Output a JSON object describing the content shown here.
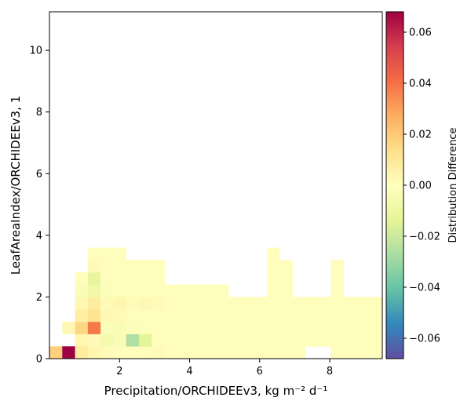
{
  "chart_data": {
    "type": "heatmap",
    "xlabel": "Precipitation/ORCHIDEEv3,  kg m⁻² d⁻¹",
    "ylabel": "LeafAreaIndex/ORCHIDEEv3,  1",
    "xlim": [
      0.0,
      9.5
    ],
    "ylim": [
      0.0,
      11.25
    ],
    "xticks": [
      "2",
      "4",
      "6",
      "8"
    ],
    "yticks": [
      "0",
      "2",
      "4",
      "6",
      "8",
      "10"
    ],
    "colorbar": {
      "label": "Distribution Difference",
      "range": [
        -0.068,
        0.068
      ],
      "ticks": [
        "−0.06",
        "−0.04",
        "−0.02",
        "0.00",
        "0.02",
        "0.04",
        "0.06"
      ],
      "colormap": "Spectral_r"
    },
    "grid": false,
    "bins": {
      "x0": 0.0,
      "dx": 0.365,
      "y0": 0.0,
      "dy": 0.4,
      "cells": [
        [
          0,
          0,
          0.018
        ],
        [
          1,
          0,
          0.068
        ],
        [
          2,
          0,
          0.008
        ],
        [
          3,
          0,
          0.004
        ],
        [
          4,
          0,
          0.002
        ],
        [
          5,
          0,
          0.001
        ],
        [
          6,
          0,
          0.001
        ],
        [
          7,
          0,
          0.001
        ],
        [
          8,
          0,
          0.002
        ],
        [
          9,
          0,
          0.001
        ],
        [
          10,
          0,
          0.001
        ],
        [
          11,
          0,
          0.001
        ],
        [
          12,
          0,
          0.001
        ],
        [
          13,
          0,
          0.001
        ],
        [
          14,
          0,
          0.001
        ],
        [
          15,
          0,
          0.001
        ],
        [
          16,
          0,
          0.001
        ],
        [
          17,
          0,
          0.001
        ],
        [
          18,
          0,
          0.001
        ],
        [
          19,
          0,
          0.001
        ],
        [
          22,
          0,
          0.001
        ],
        [
          23,
          0,
          0.001
        ],
        [
          24,
          0,
          0.001
        ],
        [
          25,
          0,
          0.001
        ],
        [
          2,
          1,
          0.004
        ],
        [
          3,
          1,
          0.002
        ],
        [
          4,
          1,
          -0.006
        ],
        [
          5,
          1,
          -0.004
        ],
        [
          6,
          1,
          -0.026
        ],
        [
          7,
          1,
          -0.014
        ],
        [
          8,
          1,
          0.001
        ],
        [
          9,
          1,
          0.001
        ],
        [
          10,
          1,
          0.001
        ],
        [
          11,
          1,
          0.001
        ],
        [
          12,
          1,
          0.001
        ],
        [
          13,
          1,
          0.001
        ],
        [
          14,
          1,
          0.001
        ],
        [
          15,
          1,
          0.001
        ],
        [
          16,
          1,
          0.001
        ],
        [
          17,
          1,
          0.001
        ],
        [
          18,
          1,
          0.001
        ],
        [
          19,
          1,
          0.001
        ],
        [
          20,
          1,
          0.001
        ],
        [
          21,
          1,
          0.001
        ],
        [
          22,
          1,
          0.001
        ],
        [
          23,
          1,
          0.001
        ],
        [
          24,
          1,
          0.001
        ],
        [
          25,
          1,
          0.001
        ],
        [
          26,
          1,
          0.001
        ],
        [
          27,
          1,
          0.001
        ],
        [
          28,
          1,
          0.001
        ],
        [
          29,
          1,
          0.001
        ],
        [
          30,
          1,
          0.001
        ],
        [
          31,
          1,
          0.001
        ],
        [
          32,
          1,
          0.001
        ],
        [
          33,
          1,
          0.001
        ],
        [
          1,
          2,
          0.003
        ],
        [
          2,
          2,
          0.016
        ],
        [
          3,
          2,
          0.038
        ],
        [
          4,
          2,
          -0.002
        ],
        [
          5,
          2,
          -0.004
        ],
        [
          6,
          2,
          -0.002
        ],
        [
          7,
          2,
          -0.001
        ],
        [
          8,
          2,
          0.001
        ],
        [
          9,
          2,
          0.001
        ],
        [
          10,
          2,
          0.001
        ],
        [
          11,
          2,
          0.001
        ],
        [
          12,
          2,
          0.001
        ],
        [
          13,
          2,
          0.001
        ],
        [
          14,
          2,
          0.001
        ],
        [
          15,
          2,
          0.001
        ],
        [
          16,
          2,
          0.001
        ],
        [
          17,
          2,
          0.001
        ],
        [
          18,
          2,
          0.001
        ],
        [
          19,
          2,
          0.001
        ],
        [
          20,
          2,
          0.001
        ],
        [
          21,
          2,
          0.001
        ],
        [
          22,
          2,
          0.001
        ],
        [
          23,
          2,
          0.001
        ],
        [
          24,
          2,
          0.001
        ],
        [
          25,
          2,
          0.001
        ],
        [
          26,
          2,
          0.001
        ],
        [
          27,
          2,
          0.001
        ],
        [
          28,
          2,
          0.001
        ],
        [
          29,
          2,
          0.001
        ],
        [
          30,
          2,
          0.001
        ],
        [
          31,
          2,
          0.001
        ],
        [
          32,
          2,
          0.001
        ],
        [
          33,
          2,
          0.001
        ],
        [
          2,
          3,
          0.007
        ],
        [
          3,
          3,
          0.012
        ],
        [
          4,
          3,
          0.003
        ],
        [
          5,
          3,
          0.002
        ],
        [
          6,
          3,
          0.001
        ],
        [
          7,
          3,
          0.001
        ],
        [
          8,
          3,
          0.001
        ],
        [
          9,
          3,
          0.001
        ],
        [
          10,
          3,
          0.001
        ],
        [
          11,
          3,
          0.001
        ],
        [
          12,
          3,
          0.001
        ],
        [
          13,
          3,
          0.001
        ],
        [
          14,
          3,
          0.001
        ],
        [
          15,
          3,
          0.001
        ],
        [
          16,
          3,
          0.001
        ],
        [
          17,
          3,
          0.001
        ],
        [
          18,
          3,
          0.001
        ],
        [
          19,
          3,
          0.001
        ],
        [
          20,
          3,
          0.001
        ],
        [
          21,
          3,
          0.001
        ],
        [
          22,
          3,
          0.001
        ],
        [
          23,
          3,
          0.001
        ],
        [
          24,
          3,
          0.001
        ],
        [
          25,
          3,
          0.001
        ],
        [
          26,
          3,
          0.001
        ],
        [
          27,
          3,
          0.001
        ],
        [
          28,
          3,
          0.001
        ],
        [
          29,
          3,
          0.001
        ],
        [
          30,
          3,
          0.001
        ],
        [
          2,
          4,
          0.003
        ],
        [
          3,
          4,
          0.008
        ],
        [
          4,
          4,
          0.002
        ],
        [
          5,
          4,
          0.004
        ],
        [
          6,
          4,
          0.002
        ],
        [
          7,
          4,
          0.003
        ],
        [
          8,
          4,
          0.002
        ],
        [
          9,
          4,
          0.001
        ],
        [
          10,
          4,
          0.001
        ],
        [
          11,
          4,
          0.001
        ],
        [
          12,
          4,
          0.001
        ],
        [
          13,
          4,
          0.001
        ],
        [
          14,
          4,
          0.001
        ],
        [
          15,
          4,
          0.001
        ],
        [
          16,
          4,
          0.001
        ],
        [
          17,
          4,
          0.001
        ],
        [
          18,
          4,
          0.001
        ],
        [
          19,
          4,
          0.001
        ],
        [
          20,
          4,
          0.001
        ],
        [
          21,
          4,
          0.001
        ],
        [
          22,
          4,
          0.001
        ],
        [
          23,
          4,
          0.001
        ],
        [
          24,
          4,
          0.001
        ],
        [
          25,
          4,
          0.001
        ],
        [
          26,
          4,
          0.001
        ],
        [
          27,
          4,
          0.001
        ],
        [
          28,
          4,
          0.001
        ],
        [
          29,
          4,
          0.001
        ],
        [
          30,
          4,
          0.001
        ],
        [
          2,
          5,
          -0.003
        ],
        [
          3,
          5,
          -0.008
        ],
        [
          4,
          5,
          -0.002
        ],
        [
          5,
          5,
          -0.001
        ],
        [
          6,
          5,
          0.001
        ],
        [
          7,
          5,
          0.001
        ],
        [
          8,
          5,
          0.001
        ],
        [
          9,
          5,
          0.001
        ],
        [
          10,
          5,
          0.001
        ],
        [
          11,
          5,
          0.001
        ],
        [
          12,
          5,
          0.001
        ],
        [
          13,
          5,
          0.001
        ],
        [
          17,
          5,
          0.001
        ],
        [
          18,
          5,
          0.001
        ],
        [
          22,
          5,
          0.001
        ],
        [
          26,
          5,
          0.001
        ],
        [
          27,
          5,
          0.001
        ],
        [
          29,
          5,
          0.001
        ],
        [
          2,
          6,
          0.001
        ],
        [
          3,
          6,
          -0.012
        ],
        [
          4,
          6,
          0.001
        ],
        [
          5,
          6,
          -0.001
        ],
        [
          6,
          6,
          -0.001
        ],
        [
          7,
          6,
          0.001
        ],
        [
          8,
          6,
          0.001
        ],
        [
          17,
          6,
          0.001
        ],
        [
          18,
          6,
          0.001
        ],
        [
          22,
          6,
          0.001
        ],
        [
          26,
          6,
          0.001
        ],
        [
          27,
          6,
          0.001
        ],
        [
          29,
          6,
          0.001
        ],
        [
          3,
          7,
          0.002
        ],
        [
          4,
          7,
          0.001
        ],
        [
          5,
          7,
          0.001
        ],
        [
          6,
          7,
          0.001
        ],
        [
          7,
          7,
          0.001
        ],
        [
          8,
          7,
          0.001
        ],
        [
          17,
          7,
          0.001
        ],
        [
          18,
          7,
          0.001
        ],
        [
          22,
          7,
          0.001
        ],
        [
          26,
          7,
          0.001
        ],
        [
          27,
          7,
          0.001
        ],
        [
          29,
          7,
          0.001
        ],
        [
          3,
          8,
          0.001
        ],
        [
          4,
          8,
          0.001
        ],
        [
          5,
          8,
          0.001
        ],
        [
          17,
          8,
          0.001
        ],
        [
          26,
          8,
          0.001
        ],
        [
          27,
          8,
          0.001
        ]
      ]
    }
  }
}
